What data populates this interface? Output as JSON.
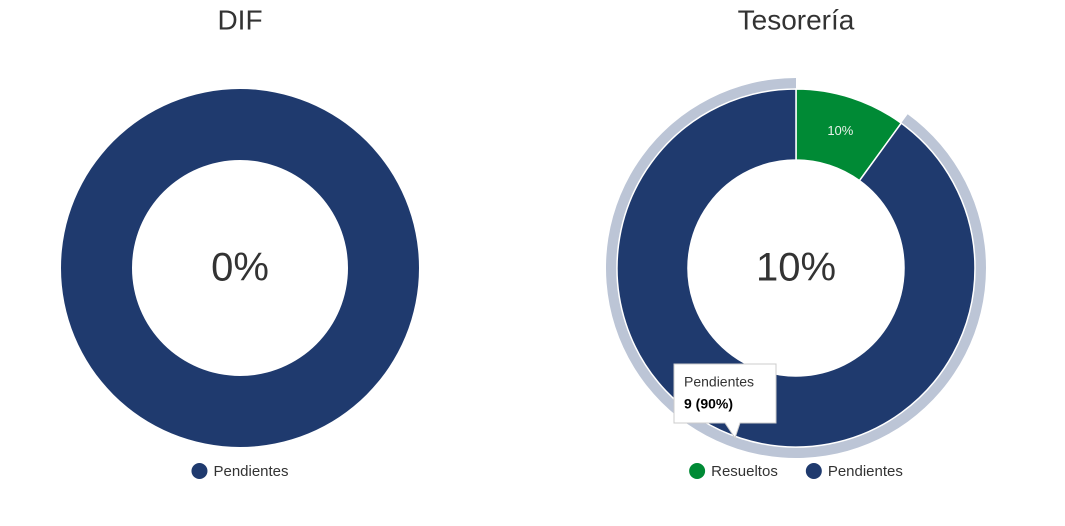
{
  "chart_data": [
    {
      "type": "donut",
      "title": "DIF",
      "center_label": "0%",
      "categories": [
        "Pendientes"
      ],
      "values": [
        100
      ],
      "colors": [
        "#1f3a6e"
      ]
    },
    {
      "type": "donut",
      "title": "Tesorería",
      "center_label": "10%",
      "categories": [
        "Resueltos",
        "Pendientes"
      ],
      "values": [
        10,
        90
      ],
      "value_labels": [
        "10%",
        null
      ],
      "colors": [
        "#008a35",
        "#1f3a6e"
      ],
      "tooltip": {
        "title": "Pendientes",
        "text": "9 (90%)"
      }
    }
  ]
}
